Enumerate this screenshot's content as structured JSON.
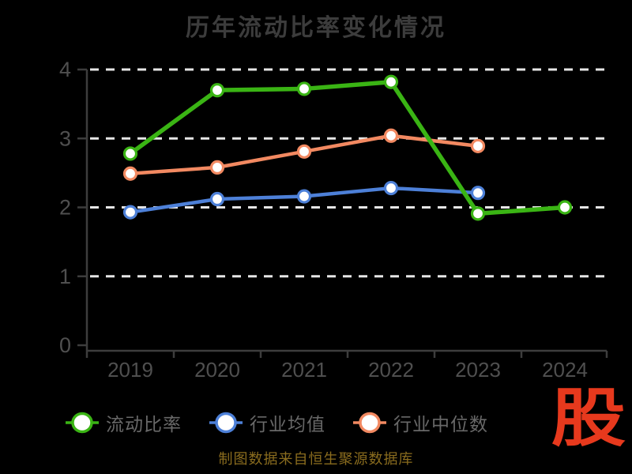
{
  "chart_data": {
    "type": "line",
    "title": "历年流动比率变化情况",
    "categories": [
      "2019",
      "2020",
      "2021",
      "2022",
      "2023",
      "2024"
    ],
    "series": [
      {
        "name": "流动比率",
        "color": "#3ab414",
        "values": [
          2.78,
          3.7,
          3.72,
          3.82,
          1.91,
          2.0
        ]
      },
      {
        "name": "行业均值",
        "color": "#4d80d8",
        "values": [
          1.93,
          2.12,
          2.16,
          2.28,
          2.21,
          null
        ]
      },
      {
        "name": "行业中位数",
        "color": "#f28961",
        "values": [
          2.49,
          2.58,
          2.81,
          3.04,
          2.89,
          null
        ]
      }
    ],
    "xlabel": "",
    "ylabel": "",
    "ylim": [
      0,
      4
    ],
    "y_ticks": [
      0,
      1,
      2,
      3,
      4
    ],
    "grid": "horizontal-dashed-white",
    "legend_position": "bottom",
    "marker": "circle-white-fill"
  },
  "footer": {
    "source_text": "制图数据来自恒生聚源数据库",
    "logo_text": "股"
  },
  "colors": {
    "background": "#000000",
    "title": "#3c3c3c",
    "axis": "#3d3d3d",
    "tick_label": "#4f4f4f",
    "gridline": "#e6e6e6",
    "legend_label": "#686868",
    "source_text": "#8a6c1e",
    "logo": "#e7391d"
  }
}
